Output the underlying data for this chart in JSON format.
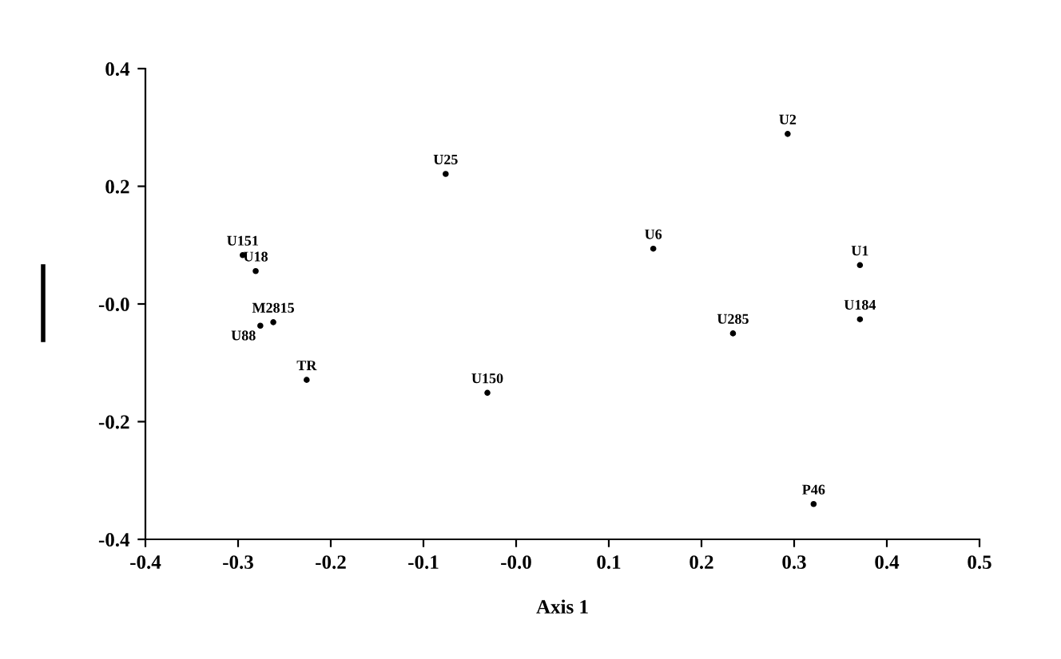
{
  "chart_data": {
    "type": "scatter",
    "xlabel": "Axis 1",
    "marker": "circle",
    "grid": false,
    "x": [
      0.293,
      -0.076,
      -0.295,
      -0.281,
      0.148,
      0.371,
      0.371,
      0.234,
      -0.262,
      -0.276,
      -0.226,
      -0.031,
      0.321
    ],
    "values": [
      0.289,
      0.221,
      0.083,
      0.056,
      0.094,
      0.066,
      -0.026,
      -0.05,
      -0.031,
      -0.037,
      -0.129,
      -0.151,
      -0.34
    ],
    "value_labels": [
      "U2",
      "U25",
      "U151",
      "U18",
      "U6",
      "U1",
      "U184",
      "U285",
      "M2815",
      "U88",
      "TR",
      "U150",
      "P46"
    ],
    "color": "#000000",
    "xlim": [
      -0.4,
      0.5
    ],
    "xticks": [
      -0.4,
      -0.3,
      -0.2,
      -0.1,
      {
        "value": 0,
        "label": "-0.0"
      },
      0.1,
      0.2,
      0.3,
      0.4,
      0.5
    ],
    "ylim": [
      -0.4,
      0.4
    ],
    "yticks": [
      -0.4,
      -0.2,
      {
        "value": 0,
        "label": "-0.0"
      },
      0.2,
      0.4
    ]
  }
}
